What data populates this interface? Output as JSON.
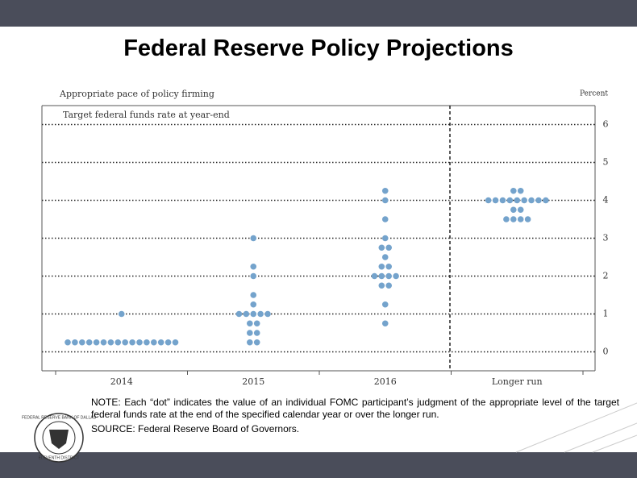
{
  "chart_data": {
    "type": "dot",
    "title": "Federal Reserve Policy Projections",
    "header": "Appropriate pace of policy firming",
    "unit_label": "Percent",
    "subheader": "Target federal funds rate at year-end",
    "categories": [
      "2014",
      "2015",
      "2016",
      "Longer run"
    ],
    "values": [
      [
        1.0,
        0.25,
        0.25,
        0.25,
        0.25,
        0.25,
        0.25,
        0.25,
        0.25,
        0.25,
        0.25,
        0.25,
        0.25,
        0.25,
        0.25,
        0.25,
        0.25
      ],
      [
        3.0,
        2.25,
        2.0,
        1.5,
        1.25,
        1.0,
        1.0,
        1.0,
        1.0,
        1.0,
        0.75,
        0.75,
        0.5,
        0.5,
        0.25,
        0.25
      ],
      [
        4.25,
        4.0,
        3.5,
        3.0,
        2.75,
        2.75,
        2.5,
        2.25,
        2.25,
        2.0,
        2.0,
        2.0,
        2.0,
        1.75,
        1.75,
        1.25,
        0.75
      ],
      [
        4.25,
        4.25,
        4.0,
        4.0,
        4.0,
        4.0,
        4.0,
        4.0,
        4.0,
        4.0,
        4.0,
        3.75,
        3.75,
        3.5,
        3.5,
        3.5,
        3.5
      ]
    ],
    "color": "#74a3cc",
    "ylim": [
      -0.5,
      6.5
    ],
    "yticks": [
      0,
      1,
      2,
      3,
      4,
      5,
      6
    ],
    "grid": true,
    "note": "NOTE: Each “dot” indicates the value of an individual FOMC participant’s judgment of the appropriate level of the target federal funds rate at the end of the specified calendar year or over the longer run.",
    "source": "SOURCE: Federal Reserve Board of Governors.",
    "logo_text": "FEDERAL RESERVE BANK OF DALLAS",
    "logo_subtext": "ELEVENTH DISTRICT"
  }
}
